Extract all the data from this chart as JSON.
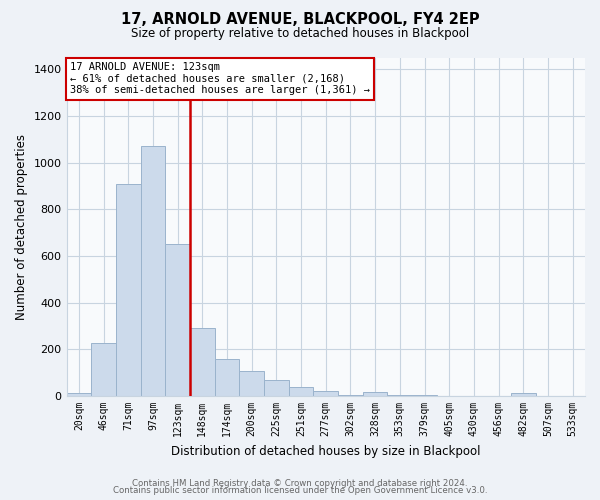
{
  "title": "17, ARNOLD AVENUE, BLACKPOOL, FY4 2EP",
  "subtitle": "Size of property relative to detached houses in Blackpool",
  "xlabel": "Distribution of detached houses by size in Blackpool",
  "ylabel": "Number of detached properties",
  "bar_labels": [
    "20sqm",
    "46sqm",
    "71sqm",
    "97sqm",
    "123sqm",
    "148sqm",
    "174sqm",
    "200sqm",
    "225sqm",
    "251sqm",
    "277sqm",
    "302sqm",
    "328sqm",
    "353sqm",
    "379sqm",
    "405sqm",
    "430sqm",
    "456sqm",
    "482sqm",
    "507sqm",
    "533sqm"
  ],
  "bar_heights": [
    15,
    228,
    910,
    1070,
    650,
    290,
    158,
    108,
    70,
    40,
    22,
    5,
    18,
    5,
    5,
    0,
    0,
    0,
    12,
    0,
    0
  ],
  "bar_color": "#ccdaeb",
  "bar_edge_color": "#9ab3cc",
  "vline_color": "#cc0000",
  "annotation_title": "17 ARNOLD AVENUE: 123sqm",
  "annotation_line1": "← 61% of detached houses are smaller (2,168)",
  "annotation_line2": "38% of semi-detached houses are larger (1,361) →",
  "annotation_box_color": "#ffffff",
  "annotation_border_color": "#cc0000",
  "ylim": [
    0,
    1450
  ],
  "yticks": [
    0,
    200,
    400,
    600,
    800,
    1000,
    1200,
    1400
  ],
  "footnote1": "Contains HM Land Registry data © Crown copyright and database right 2024.",
  "footnote2": "Contains public sector information licensed under the Open Government Licence v3.0.",
  "bg_color": "#eef2f7",
  "plot_bg_color": "#f8fafc",
  "grid_color": "#c8d4e0"
}
